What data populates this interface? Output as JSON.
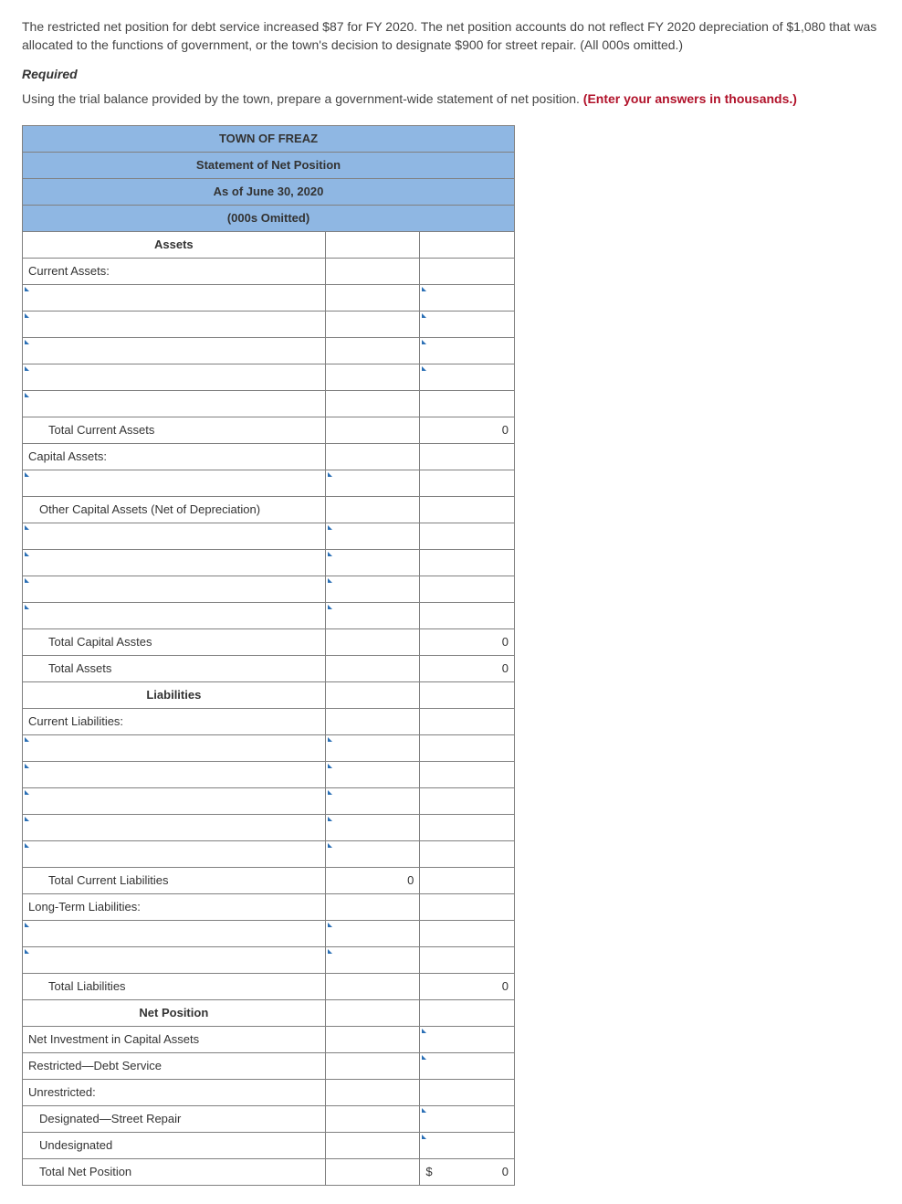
{
  "intro_text": "The restricted net position for debt service increased $87 for FY 2020. The net position accounts do not reflect FY 2020 depreciation of $1,080 that was allocated to the functions of government, or the town's decision to designate $900 for street repair. (All 000s omitted.)",
  "required_label": "Required",
  "prompt_text": "Using the trial balance provided by the town, prepare a government-wide statement of net position. ",
  "prompt_red": "(Enter your answers in thousands.)",
  "table": {
    "header_rows": [
      "TOWN OF FREAZ",
      "Statement of Net Position",
      "As of June 30, 2020",
      "(000s Omitted)"
    ],
    "sections": {
      "assets_label": "Assets",
      "current_assets_label": "Current Assets:",
      "total_current_assets_label": "Total Current Assets",
      "total_current_assets_value": "0",
      "capital_assets_label": "Capital Assets:",
      "other_cap_assets_label": "Other Capital Assets (Net of Depreciation)",
      "total_capital_assets_label": "Total Capital Asstes",
      "total_capital_assets_value": "0",
      "total_assets_label": "Total Assets",
      "total_assets_value": "0",
      "liabilities_label": "Liabilities",
      "current_liabilities_label": "Current Liabilities:",
      "total_current_liabilities_label": "Total Current Liabilities",
      "total_current_liabilities_value": "0",
      "long_term_liabilities_label": "Long-Term Liabilities:",
      "total_liabilities_label": "Total Liabilities",
      "total_liabilities_value": "0",
      "net_position_label": "Net Position",
      "net_investment_label": "Net Investment in Capital Assets",
      "restricted_label": "Restricted—Debt Service",
      "unrestricted_label": "Unrestricted:",
      "designated_label": "Designated—Street Repair",
      "undesignated_label": "Undesignated",
      "total_net_position_label": "Total Net Position",
      "total_net_position_prefix": "$",
      "total_net_position_value": "0"
    }
  },
  "colors": {
    "header_bg": "#8fb7e3",
    "border": "#808080",
    "dropdown_arrow": "#2a6fb5",
    "red_text": "#b1122a"
  }
}
